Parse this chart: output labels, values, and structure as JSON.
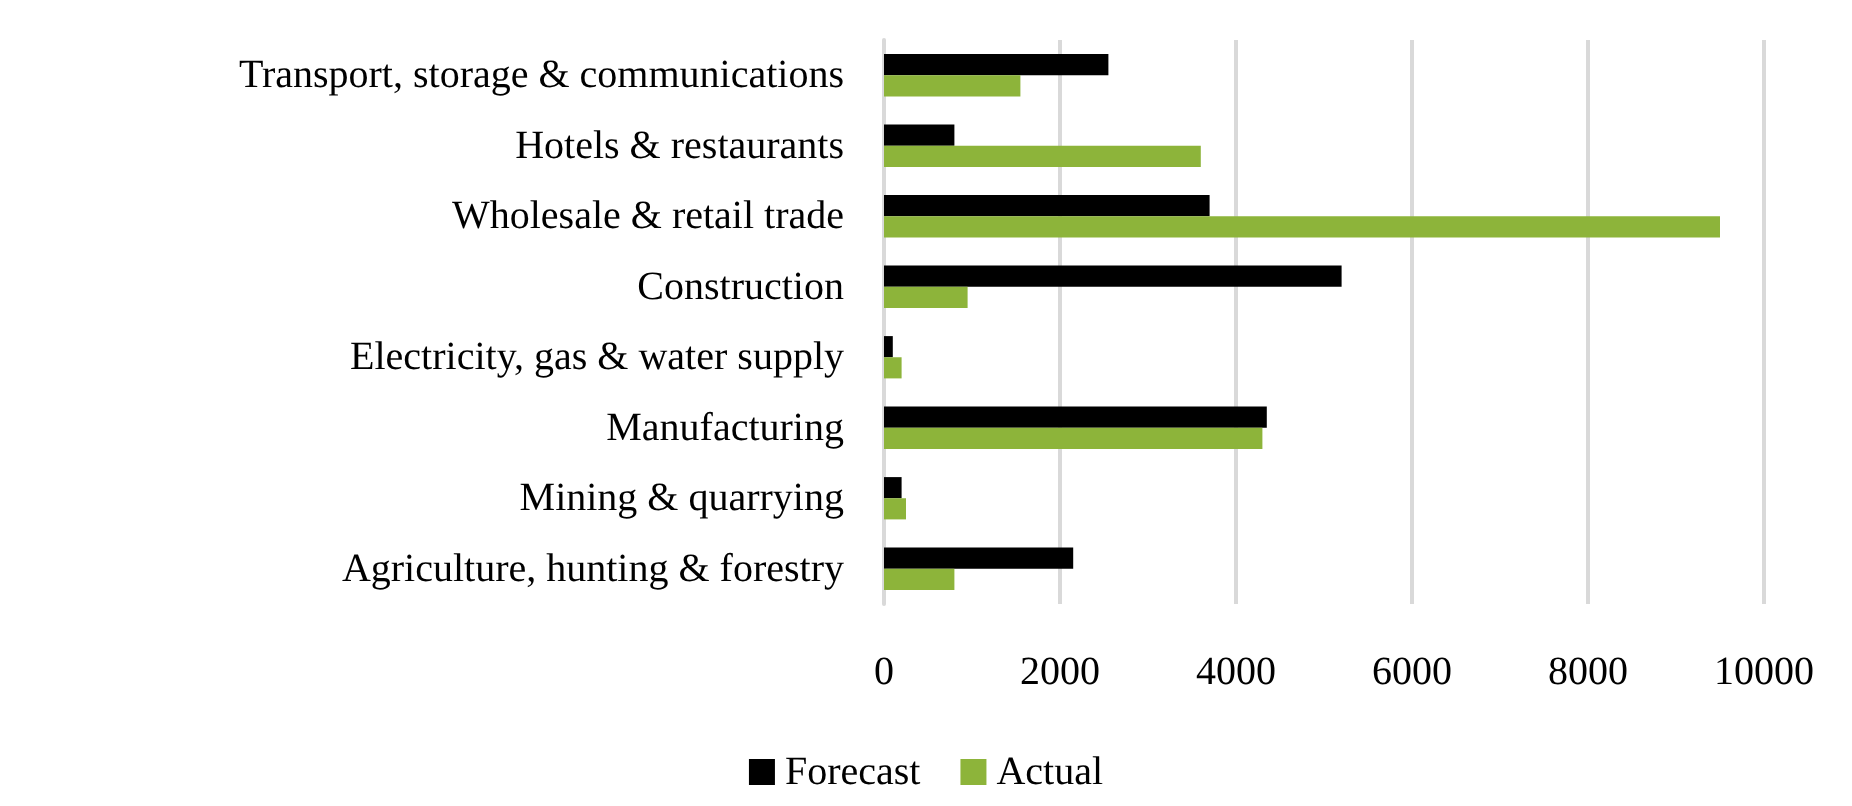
{
  "chart_data": {
    "type": "bar",
    "orientation": "horizontal",
    "categories": [
      "Transport, storage & communications",
      "Hotels & restaurants",
      "Wholesale & retail trade",
      "Construction",
      "Electricity, gas & water supply",
      "Manufacturing",
      "Mining & quarrying",
      "Agriculture, hunting & forestry"
    ],
    "series": [
      {
        "name": "Forecast",
        "color": "#000000",
        "values": [
          2550,
          800,
          3700,
          5200,
          100,
          4350,
          200,
          2150
        ]
      },
      {
        "name": "Actual",
        "color": "#8db43a",
        "values": [
          1550,
          3600,
          9500,
          950,
          200,
          4300,
          250,
          800
        ]
      }
    ],
    "xlim": [
      0,
      10000
    ],
    "xticks": [
      0,
      2000,
      4000,
      6000,
      8000,
      10000
    ],
    "grid": "x",
    "legend": "bottom"
  }
}
